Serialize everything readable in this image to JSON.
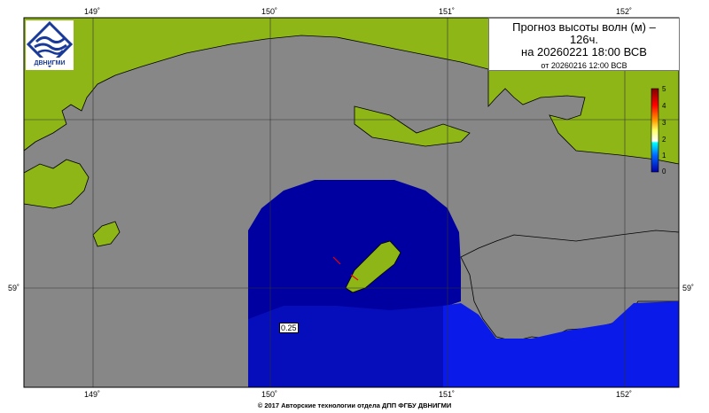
{
  "title": {
    "line1": "Прогноз высоты волн (м) –",
    "line2": "126ч.",
    "line3": "на 20260221 18:00 ВСВ",
    "line4": "от 20260216 12:00 ВСВ"
  },
  "axes": {
    "lon_top": [
      "149˚",
      "150˚",
      "151˚",
      "152˚"
    ],
    "lon_bottom": [
      "149˚",
      "150˚",
      "151˚",
      "152˚"
    ],
    "lat_left": [
      "59˚"
    ],
    "lat_right": [
      "59˚"
    ]
  },
  "colorbar": {
    "labels": [
      "5",
      "4",
      "3",
      "2",
      "1",
      "0"
    ],
    "colors": [
      "#800000",
      "#ff0000",
      "#ff9900",
      "#ffff66",
      "#ffffff",
      "#00ffff",
      "#0066ff",
      "#0000aa"
    ],
    "range": [
      0,
      5
    ],
    "unit": "м"
  },
  "contour_label": "0.25",
  "colors": {
    "land": "#8db616",
    "nodata": "#878787",
    "wave_low": "#0000a0",
    "wave_mid": "#0a1ae8"
  },
  "logo": {
    "text": "ДВНИГМИ"
  },
  "footer": "© 2017 Авторские технологии отдела ДПП ФГБУ ДВНИГМИ"
}
